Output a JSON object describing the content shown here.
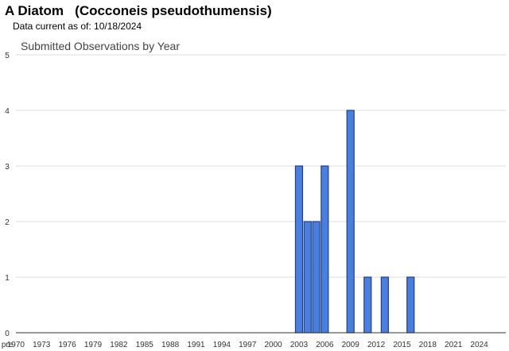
{
  "header": {
    "title": "A Diatom   (Cocconeis pseudothumensis)",
    "data_current": "Data current as of: 10/18/2024"
  },
  "chart_data": {
    "type": "bar",
    "title": "Submitted Observations by Year",
    "xlabel": "",
    "ylabel": "",
    "ylim": [
      0,
      5
    ],
    "yticks": [
      0,
      1,
      2,
      3,
      4,
      5
    ],
    "grid": true,
    "x_tick_labels": [
      "pre",
      "1970",
      "1973",
      "1976",
      "1979",
      "1982",
      "1985",
      "1988",
      "1991",
      "1994",
      "1997",
      "2000",
      "2003",
      "2006",
      "2009",
      "2012",
      "2015",
      "2018",
      "2021",
      "2024"
    ],
    "categories": [
      "pre",
      "1970",
      "1971",
      "1972",
      "1973",
      "1974",
      "1975",
      "1976",
      "1977",
      "1978",
      "1979",
      "1980",
      "1981",
      "1982",
      "1983",
      "1984",
      "1985",
      "1986",
      "1987",
      "1988",
      "1989",
      "1990",
      "1991",
      "1992",
      "1993",
      "1994",
      "1995",
      "1996",
      "1997",
      "1998",
      "1999",
      "2000",
      "2001",
      "2002",
      "2003",
      "2004",
      "2005",
      "2006",
      "2007",
      "2008",
      "2009",
      "2010",
      "2011",
      "2012",
      "2013",
      "2014",
      "2015",
      "2016",
      "2017",
      "2018",
      "2019",
      "2020",
      "2021",
      "2022",
      "2023",
      "2024"
    ],
    "values": [
      0,
      0,
      0,
      0,
      0,
      0,
      0,
      0,
      0,
      0,
      0,
      0,
      0,
      0,
      0,
      0,
      0,
      0,
      0,
      0,
      0,
      0,
      0,
      0,
      0,
      0,
      0,
      0,
      0,
      0,
      0,
      0,
      0,
      0,
      3,
      2,
      2,
      3,
      0,
      0,
      4,
      0,
      1,
      0,
      1,
      0,
      0,
      1,
      0,
      0,
      0,
      0,
      0,
      0,
      0,
      0
    ],
    "bar_color": "#4a7fe0"
  }
}
